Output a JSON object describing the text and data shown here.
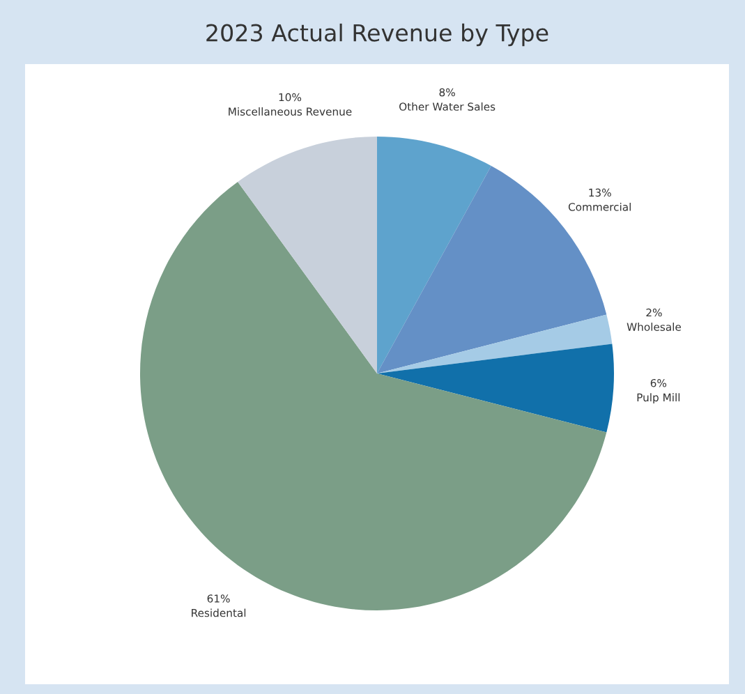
{
  "chart_data": {
    "type": "pie",
    "title": "2023 Actual Revenue by Type",
    "categories": [
      "Other Water Sales",
      "Commercial",
      "Wholesale",
      "Pulp Mill",
      "Residental",
      "Miscellaneous Revenue"
    ],
    "values": [
      8,
      13,
      2,
      6,
      61,
      10
    ],
    "value_labels": [
      "8%",
      "13%",
      "2%",
      "6%",
      "61%",
      "10%"
    ],
    "colors": [
      "#5ea3cd",
      "#6490c6",
      "#a5cbe6",
      "#1170aa",
      "#7b9e87",
      "#c8d0db"
    ],
    "legend": false
  }
}
